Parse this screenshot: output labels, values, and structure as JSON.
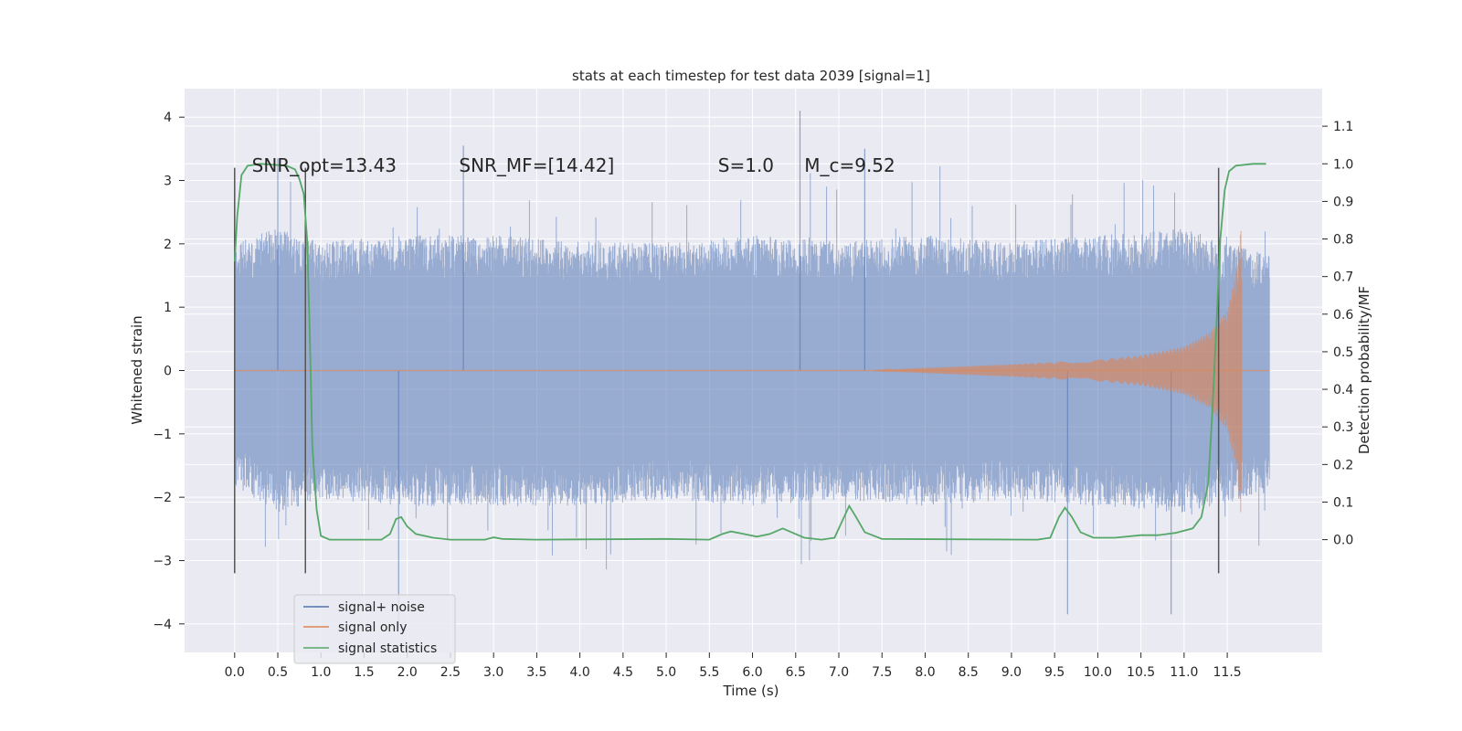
{
  "chart_data": {
    "type": "line",
    "title": "stats at each timestep for test data 2039 [signal=1]",
    "xlabel": "Time (s)",
    "ylabel": "Whitened strain",
    "ylabel_right": "Detection probability/MF",
    "xlim": [
      -0.58,
      12.6
    ],
    "ylim": [
      -4.45,
      4.45
    ],
    "ylim_right": [
      -0.3,
      1.2
    ],
    "x_ticks": [
      0.0,
      0.5,
      1.0,
      1.5,
      2.0,
      2.5,
      3.0,
      3.5,
      4.0,
      4.5,
      5.0,
      5.5,
      6.0,
      6.5,
      7.0,
      7.5,
      8.0,
      8.5,
      9.0,
      9.5,
      10.0,
      10.5,
      11.0,
      11.5
    ],
    "x_tick_labels": [
      "0.0",
      "0.5",
      "1.0",
      "1.5",
      "2.0",
      "2.5",
      "3.0",
      "3.5",
      "4.0",
      "4.5",
      "5.0",
      "5.5",
      "6.0",
      "6.5",
      "7.0",
      "7.5",
      "8.0",
      "8.5",
      "9.0",
      "9.5",
      "10.0",
      "10.5",
      "11.0",
      "11.5"
    ],
    "y_ticks": [
      -4,
      -3,
      -2,
      -1,
      0,
      1,
      2,
      3,
      4
    ],
    "y_tick_labels": [
      "−4",
      "−3",
      "−2",
      "−1",
      "0",
      "1",
      "2",
      "3",
      "4"
    ],
    "y_ticks_right": [
      0.0,
      0.1,
      0.2,
      0.3,
      0.4,
      0.5,
      0.6,
      0.7,
      0.8,
      0.9,
      1.0,
      1.1
    ],
    "y_tick_labels_right": [
      "0.0",
      "0.1",
      "0.2",
      "0.3",
      "0.4",
      "0.5",
      "0.6",
      "0.7",
      "0.8",
      "0.9",
      "1.0",
      "1.1"
    ],
    "grid": true,
    "legend_position": "lower-left",
    "annotations": [
      {
        "text": "SNR_opt=13.43",
        "x": 0.2,
        "y": 3.25
      },
      {
        "text": "SNR_MF=[14.42]",
        "x": 2.6,
        "y": 3.25
      },
      {
        "text": "S=1.0",
        "x": 5.6,
        "y": 3.25
      },
      {
        "text": "M_c=9.52",
        "x": 6.6,
        "y": 3.25
      }
    ],
    "vlines": [
      {
        "x": 0.0,
        "ymin": -3.2,
        "ymax": 3.2
      },
      {
        "x": 0.82,
        "ymin": -3.2,
        "ymax": 3.2
      },
      {
        "x": 11.4,
        "ymin": -3.2,
        "ymax": 3.2
      }
    ],
    "series": [
      {
        "name": "signal+ noise",
        "color": "#4c72b0",
        "kind": "noise",
        "x_range": [
          0.0,
          11.99
        ],
        "envelope_pos": [
          [
            0.0,
            1.9
          ],
          [
            0.5,
            2.1
          ],
          [
            1.0,
            1.9
          ],
          [
            2.0,
            2.0
          ],
          [
            3.0,
            2.0
          ],
          [
            4.0,
            1.9
          ],
          [
            5.0,
            1.9
          ],
          [
            6.0,
            2.0
          ],
          [
            7.0,
            1.9
          ],
          [
            8.0,
            2.0
          ],
          [
            9.0,
            1.9
          ],
          [
            10.0,
            2.0
          ],
          [
            11.0,
            2.1
          ],
          [
            11.99,
            1.7
          ]
        ],
        "envelope_neg": [
          [
            0.0,
            -1.7
          ],
          [
            0.5,
            -2.1
          ],
          [
            1.0,
            -1.9
          ],
          [
            2.0,
            -2.0
          ],
          [
            3.0,
            -2.0
          ],
          [
            4.0,
            -2.0
          ],
          [
            5.0,
            -1.9
          ],
          [
            6.0,
            -2.0
          ],
          [
            7.0,
            -1.9
          ],
          [
            8.0,
            -2.0
          ],
          [
            9.0,
            -1.9
          ],
          [
            10.0,
            -2.0
          ],
          [
            11.0,
            -2.1
          ],
          [
            11.99,
            -1.8
          ]
        ],
        "spikes": [
          [
            0.5,
            3.35
          ],
          [
            1.9,
            -4.05
          ],
          [
            2.65,
            3.55
          ],
          [
            6.55,
            4.1
          ],
          [
            7.3,
            3.5
          ],
          [
            9.65,
            -3.85
          ],
          [
            10.85,
            -3.85
          ]
        ]
      },
      {
        "name": "signal only",
        "color": "#dd8452",
        "kind": "chirp",
        "amplitude": [
          [
            7.4,
            0.0
          ],
          [
            8.0,
            0.04
          ],
          [
            9.0,
            0.1
          ],
          [
            10.0,
            0.17
          ],
          [
            10.5,
            0.24
          ],
          [
            11.0,
            0.38
          ],
          [
            11.3,
            0.6
          ],
          [
            11.5,
            0.95
          ],
          [
            11.6,
            1.5
          ],
          [
            11.66,
            2.3
          ],
          [
            11.7,
            0.0
          ]
        ]
      },
      {
        "name": "signal statistics",
        "color": "#55a868",
        "kind": "line",
        "axis": "right",
        "points": [
          [
            0.0,
            0.74
          ],
          [
            0.03,
            0.86
          ],
          [
            0.08,
            0.97
          ],
          [
            0.15,
            0.995
          ],
          [
            0.3,
            1.0
          ],
          [
            0.6,
            0.995
          ],
          [
            0.7,
            0.985
          ],
          [
            0.75,
            0.96
          ],
          [
            0.8,
            0.92
          ],
          [
            0.84,
            0.8
          ],
          [
            0.87,
            0.55
          ],
          [
            0.9,
            0.25
          ],
          [
            0.95,
            0.08
          ],
          [
            1.0,
            0.01
          ],
          [
            1.1,
            0.0
          ],
          [
            1.5,
            0.0
          ],
          [
            1.7,
            0.0
          ],
          [
            1.8,
            0.015
          ],
          [
            1.87,
            0.055
          ],
          [
            1.93,
            0.06
          ],
          [
            2.0,
            0.035
          ],
          [
            2.1,
            0.015
          ],
          [
            2.3,
            0.005
          ],
          [
            2.5,
            0.0
          ],
          [
            2.9,
            0.0
          ],
          [
            3.0,
            0.006
          ],
          [
            3.1,
            0.002
          ],
          [
            3.5,
            0.0
          ],
          [
            5.0,
            0.002
          ],
          [
            5.5,
            0.0
          ],
          [
            5.65,
            0.015
          ],
          [
            5.75,
            0.022
          ],
          [
            5.9,
            0.015
          ],
          [
            6.05,
            0.008
          ],
          [
            6.2,
            0.015
          ],
          [
            6.35,
            0.03
          ],
          [
            6.45,
            0.02
          ],
          [
            6.6,
            0.005
          ],
          [
            6.8,
            0.0
          ],
          [
            6.95,
            0.005
          ],
          [
            7.02,
            0.04
          ],
          [
            7.12,
            0.09
          ],
          [
            7.2,
            0.06
          ],
          [
            7.3,
            0.02
          ],
          [
            7.5,
            0.002
          ],
          [
            9.3,
            0.0
          ],
          [
            9.45,
            0.005
          ],
          [
            9.55,
            0.06
          ],
          [
            9.62,
            0.085
          ],
          [
            9.7,
            0.06
          ],
          [
            9.8,
            0.02
          ],
          [
            9.95,
            0.005
          ],
          [
            10.2,
            0.005
          ],
          [
            10.5,
            0.012
          ],
          [
            10.7,
            0.012
          ],
          [
            10.9,
            0.018
          ],
          [
            11.1,
            0.03
          ],
          [
            11.2,
            0.06
          ],
          [
            11.28,
            0.15
          ],
          [
            11.33,
            0.35
          ],
          [
            11.38,
            0.6
          ],
          [
            11.42,
            0.8
          ],
          [
            11.47,
            0.93
          ],
          [
            11.52,
            0.98
          ],
          [
            11.6,
            0.995
          ],
          [
            11.8,
            1.0
          ],
          [
            11.95,
            1.0
          ]
        ]
      }
    ]
  },
  "legend": {
    "items": [
      {
        "label": "signal+ noise",
        "color": "#4c72b0"
      },
      {
        "label": "signal only",
        "color": "#dd8452"
      },
      {
        "label": "signal statistics",
        "color": "#55a868"
      }
    ]
  },
  "colors": {
    "plot_background": "#eaeaf2",
    "grid": "#ffffff",
    "vline": "#555555"
  }
}
